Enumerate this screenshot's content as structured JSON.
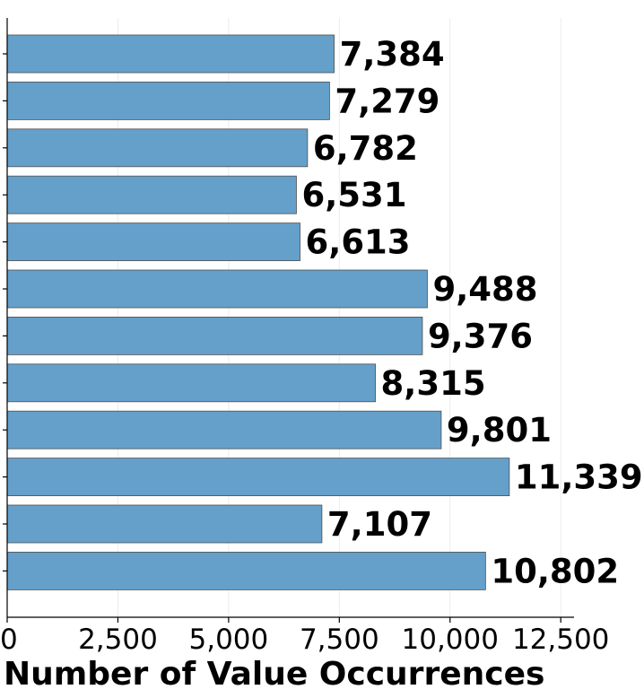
{
  "chart_data": {
    "type": "bar",
    "orientation": "horizontal",
    "title": "",
    "xlabel": "Number of Value Occurrences",
    "ylabel": "",
    "values": [
      7384,
      7279,
      6782,
      6531,
      6613,
      9488,
      9376,
      8315,
      9801,
      11339,
      7107,
      10802
    ],
    "value_labels": [
      "7,384",
      "7,279",
      "6,782",
      "6,531",
      "6,613",
      "9,488",
      "9,376",
      "8,315",
      "9,801",
      "11,339",
      "7,107",
      "10,802"
    ],
    "xlim": [
      0,
      12800
    ],
    "xticks": [
      0,
      2500,
      5000,
      7500,
      10000,
      12500
    ],
    "xtick_labels": [
      "0",
      "2,500",
      "5,000",
      "7,500",
      "10,000",
      "12,500"
    ],
    "grid": "vertical",
    "bar_color": "#64a0ca",
    "edge_color": "#4f4f4f"
  }
}
